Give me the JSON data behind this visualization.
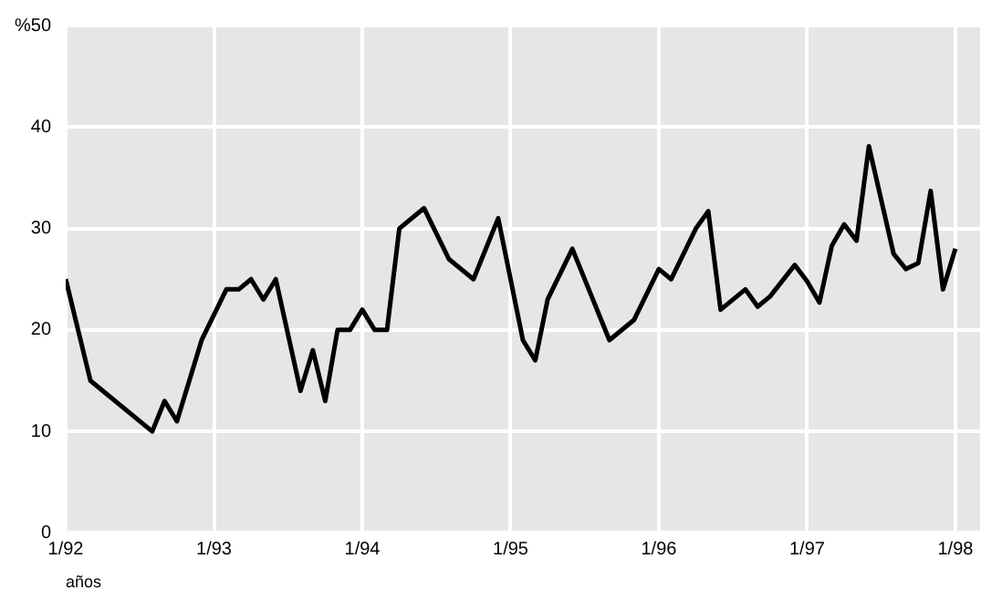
{
  "chart_data": {
    "type": "line",
    "xlabel": "años",
    "x": [
      "1992-01",
      "1992-03",
      "1992-08",
      "1992-09",
      "1992-10",
      "1992-12",
      "1993-02",
      "1993-03",
      "1993-04",
      "1993-05",
      "1993-06",
      "1993-08",
      "1993-09",
      "1993-10",
      "1993-11",
      "1993-12",
      "1994-01",
      "1994-02",
      "1994-03",
      "1994-04",
      "1994-06",
      "1994-08",
      "1994-10",
      "1994-12",
      "1995-02",
      "1995-03",
      "1995-04",
      "1995-06",
      "1995-09",
      "1995-11",
      "1996-01",
      "1996-02",
      "1996-04",
      "1996-05",
      "1996-06",
      "1996-08",
      "1996-09",
      "1996-10",
      "1996-12",
      "1997-01",
      "1997-02",
      "1997-03",
      "1997-04",
      "1997-05",
      "1997-06",
      "1997-08",
      "1997-09",
      "1997-10",
      "1997-11",
      "1997-12",
      "1998-01"
    ],
    "values": [
      25,
      15,
      10,
      13,
      11,
      19,
      24,
      24,
      25,
      23,
      25,
      14,
      18,
      13,
      20,
      20,
      22,
      20,
      20,
      30,
      32,
      27,
      25,
      31,
      19,
      17,
      23,
      28,
      19,
      21,
      26,
      25,
      30,
      31.7,
      22,
      24,
      22.3,
      23.3,
      26.4,
      24.8,
      22.7,
      28.3,
      30.4,
      28.8,
      38.1,
      27.5,
      26,
      26.6,
      33.7,
      24,
      28
    ],
    "color": "#000000",
    "xlim": [
      "1992-01",
      "1998-03"
    ],
    "xticks": [
      {
        "value": "1992-01",
        "label": "1/92"
      },
      {
        "value": "1993-01",
        "label": "1/93"
      },
      {
        "value": "1994-01",
        "label": "1/94"
      },
      {
        "value": "1995-01",
        "label": "1/95"
      },
      {
        "value": "1996-01",
        "label": "1/96"
      },
      {
        "value": "1997-01",
        "label": "1/97"
      },
      {
        "value": "1998-01",
        "label": "1/98"
      }
    ],
    "ylim": [
      0,
      50
    ],
    "yticks": [
      0,
      10,
      20,
      30,
      40,
      {
        "value": 50,
        "label": "%50"
      }
    ],
    "grid": true,
    "marker": "none",
    "line_style": "solid"
  }
}
